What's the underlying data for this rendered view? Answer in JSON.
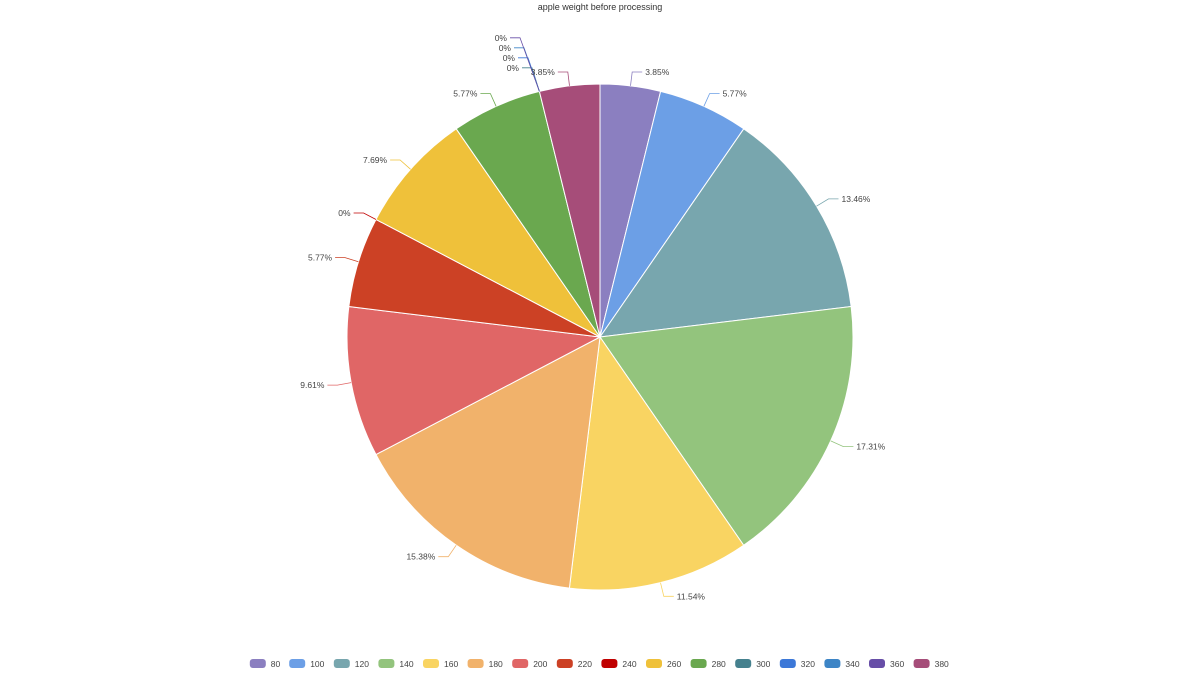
{
  "chart_data": {
    "type": "pie",
    "title": "apple weight before processing",
    "legend_position": "bottom",
    "slices": [
      {
        "label": "80",
        "value": 3.85,
        "pct_label": "3.85%",
        "color": "#8b7fc0"
      },
      {
        "label": "100",
        "value": 5.77,
        "pct_label": "5.77%",
        "color": "#6c9fe6"
      },
      {
        "label": "120",
        "value": 13.46,
        "pct_label": "13.46%",
        "color": "#78a6ae"
      },
      {
        "label": "140",
        "value": 17.31,
        "pct_label": "17.31%",
        "color": "#93c47d"
      },
      {
        "label": "160",
        "value": 11.54,
        "pct_label": "11.54%",
        "color": "#f9d462"
      },
      {
        "label": "180",
        "value": 15.38,
        "pct_label": "15.38%",
        "color": "#f1b26b"
      },
      {
        "label": "200",
        "value": 9.61,
        "pct_label": "9.61%",
        "color": "#e06666"
      },
      {
        "label": "220",
        "value": 5.77,
        "pct_label": "5.77%",
        "color": "#cc4125"
      },
      {
        "label": "240",
        "value": 0,
        "pct_label": "0%",
        "color": "#c00000"
      },
      {
        "label": "260",
        "value": 7.69,
        "pct_label": "7.69%",
        "color": "#efc13a"
      },
      {
        "label": "280",
        "value": 5.77,
        "pct_label": "5.77%",
        "color": "#6aa84f"
      },
      {
        "label": "300",
        "value": 0,
        "pct_label": "0%",
        "color": "#45818e"
      },
      {
        "label": "320",
        "value": 0,
        "pct_label": "0%",
        "color": "#3c78d8"
      },
      {
        "label": "340",
        "value": 0,
        "pct_label": "0%",
        "color": "#3d85c6"
      },
      {
        "label": "360",
        "value": 0,
        "pct_label": "0%",
        "color": "#674ea7"
      },
      {
        "label": "380",
        "value": 3.85,
        "pct_label": "3.85%",
        "color": "#a64d79"
      }
    ]
  }
}
